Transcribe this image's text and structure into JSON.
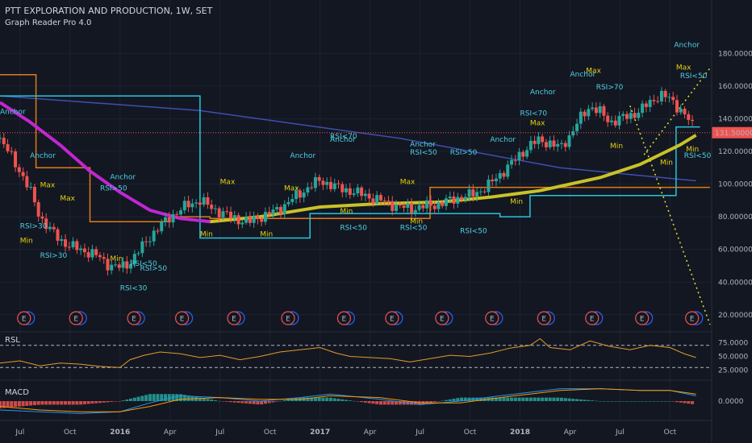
{
  "header": {
    "title": "PTT EXPLORATION AND PRODUCTION, 1W, SET",
    "indicator": "Graph Reader Pro 4.0"
  },
  "colors": {
    "background": "#131722",
    "up": "#26a69a",
    "down": "#ef5350",
    "ma_magenta": "#c026d3",
    "ma_yellow": "#c9c227",
    "blue_line": "#3f4fb0",
    "orange_step": "#e07b1a",
    "cyan_step": "#26c6da",
    "signal_yellow": "#e4d40c",
    "signal_cyan": "#4dd0e1",
    "rsl_line": "#e59a2b",
    "macd_line": "#2196f3",
    "macd_signal": "#ff9800"
  },
  "chart_data": {
    "type": "candlestick",
    "price_axis": [
      "180.00000",
      "160.00000",
      "140.00000",
      "120.00000",
      "100.00000",
      "80.00000",
      "60.00000",
      "40.00000",
      "20.00000"
    ],
    "price_ticks": [
      180,
      160,
      140,
      120,
      100,
      80,
      60,
      40,
      20
    ],
    "ylim": [
      13,
      193
    ],
    "last_price": "131.50000",
    "last_price_value": 131.5,
    "x_labels": [
      "Jul",
      "Oct",
      "2016",
      "Apr",
      "Jul",
      "Oct",
      "2017",
      "Apr",
      "Jul",
      "Oct",
      "2018",
      "Apr",
      "Jul",
      "Oct"
    ],
    "x_range": [
      2015.4,
      2018.95
    ],
    "x_label_positions": [
      2015.5,
      2015.75,
      2016.0,
      2016.25,
      2016.5,
      2016.75,
      2017.0,
      2017.25,
      2017.5,
      2017.75,
      2018.0,
      2018.25,
      2018.5,
      2018.75
    ],
    "price_series": [
      [
        2015.4,
        128
      ],
      [
        2015.45,
        118
      ],
      [
        2015.5,
        108
      ],
      [
        2015.55,
        96
      ],
      [
        2015.6,
        80
      ],
      [
        2015.65,
        72
      ],
      [
        2015.7,
        66
      ],
      [
        2015.75,
        62
      ],
      [
        2015.8,
        60
      ],
      [
        2015.85,
        58
      ],
      [
        2015.9,
        55
      ],
      [
        2015.95,
        50
      ],
      [
        2016.0,
        49
      ],
      [
        2016.05,
        52
      ],
      [
        2016.1,
        60
      ],
      [
        2016.15,
        68
      ],
      [
        2016.2,
        74
      ],
      [
        2016.25,
        80
      ],
      [
        2016.3,
        84
      ],
      [
        2016.35,
        88
      ],
      [
        2016.4,
        90
      ],
      [
        2016.45,
        86
      ],
      [
        2016.5,
        83
      ],
      [
        2016.55,
        80
      ],
      [
        2016.6,
        78
      ],
      [
        2016.65,
        77
      ],
      [
        2016.7,
        80
      ],
      [
        2016.75,
        82
      ],
      [
        2016.8,
        85
      ],
      [
        2016.85,
        90
      ],
      [
        2016.9,
        94
      ],
      [
        2016.95,
        99
      ],
      [
        2017.0,
        102
      ],
      [
        2017.05,
        100
      ],
      [
        2017.1,
        97
      ],
      [
        2017.15,
        96
      ],
      [
        2017.2,
        94
      ],
      [
        2017.25,
        92
      ],
      [
        2017.3,
        90
      ],
      [
        2017.35,
        88
      ],
      [
        2017.4,
        86
      ],
      [
        2017.45,
        85
      ],
      [
        2017.5,
        86
      ],
      [
        2017.55,
        87
      ],
      [
        2017.6,
        88
      ],
      [
        2017.65,
        90
      ],
      [
        2017.7,
        92
      ],
      [
        2017.75,
        93
      ],
      [
        2017.8,
        96
      ],
      [
        2017.85,
        100
      ],
      [
        2017.9,
        106
      ],
      [
        2017.95,
        112
      ],
      [
        2018.0,
        118
      ],
      [
        2018.05,
        124
      ],
      [
        2018.1,
        127
      ],
      [
        2018.15,
        125
      ],
      [
        2018.2,
        122
      ],
      [
        2018.25,
        130
      ],
      [
        2018.3,
        140
      ],
      [
        2018.35,
        148
      ],
      [
        2018.4,
        144
      ],
      [
        2018.45,
        138
      ],
      [
        2018.5,
        140
      ],
      [
        2018.55,
        142
      ],
      [
        2018.6,
        145
      ],
      [
        2018.65,
        150
      ],
      [
        2018.7,
        155
      ],
      [
        2018.75,
        152
      ],
      [
        2018.8,
        146
      ],
      [
        2018.85,
        138
      ],
      [
        2018.88,
        131.5
      ]
    ],
    "ma_magenta": [
      [
        2015.4,
        150
      ],
      [
        2015.55,
        138
      ],
      [
        2015.7,
        124
      ],
      [
        2015.85,
        108
      ],
      [
        2016.0,
        95
      ],
      [
        2016.15,
        84
      ],
      [
        2016.3,
        79
      ],
      [
        2016.45,
        77
      ]
    ],
    "ma_yellow": [
      [
        2016.45,
        77
      ],
      [
        2016.7,
        80
      ],
      [
        2017.0,
        86
      ],
      [
        2017.3,
        88
      ],
      [
        2017.6,
        89
      ],
      [
        2017.85,
        92
      ],
      [
        2018.1,
        96
      ],
      [
        2018.4,
        104
      ],
      [
        2018.6,
        112
      ],
      [
        2018.8,
        124
      ],
      [
        2018.88,
        130
      ]
    ],
    "blue_line": [
      [
        2015.4,
        154
      ],
      [
        2016.4,
        145
      ],
      [
        2017.4,
        128
      ],
      [
        2018.2,
        110
      ],
      [
        2018.88,
        102
      ]
    ],
    "orange_step": [
      [
        2015.4,
        167
      ],
      [
        2015.58,
        167
      ],
      [
        2015.58,
        110
      ],
      [
        2015.85,
        110
      ],
      [
        2015.85,
        77
      ],
      [
        2016.25,
        77
      ],
      [
        2016.25,
        80
      ],
      [
        2016.45,
        80
      ],
      [
        2016.45,
        79
      ],
      [
        2017.55,
        79
      ],
      [
        2017.55,
        98
      ],
      [
        2018.95,
        98
      ]
    ],
    "cyan_step": [
      [
        2015.4,
        154
      ],
      [
        2016.4,
        154
      ],
      [
        2016.4,
        67
      ],
      [
        2016.95,
        67
      ],
      [
        2016.95,
        82
      ],
      [
        2017.9,
        82
      ],
      [
        2017.9,
        80
      ],
      [
        2018.05,
        80
      ],
      [
        2018.05,
        93
      ],
      [
        2018.78,
        93
      ],
      [
        2018.78,
        135
      ],
      [
        2018.9,
        135
      ]
    ],
    "dotted_up": [
      [
        2018.62,
        118
      ],
      [
        2018.95,
        171
      ]
    ],
    "dotted_down": [
      [
        2018.55,
        148
      ],
      [
        2018.95,
        14
      ]
    ],
    "signals": [
      {
        "text": "Anchor",
        "x": 2015.4,
        "y": 143,
        "c": "cyan"
      },
      {
        "text": "Anchor",
        "x": 2015.55,
        "y": 116,
        "c": "cyan"
      },
      {
        "text": "Anchor",
        "x": 2015.95,
        "y": 103,
        "c": "cyan"
      },
      {
        "text": "Anchor",
        "x": 2016.85,
        "y": 116,
        "c": "cyan"
      },
      {
        "text": "Anchor",
        "x": 2017.05,
        "y": 126,
        "c": "cyan"
      },
      {
        "text": "Anchor",
        "x": 2017.45,
        "y": 123,
        "c": "cyan"
      },
      {
        "text": "Anchor",
        "x": 2017.85,
        "y": 126,
        "c": "cyan"
      },
      {
        "text": "Anchor",
        "x": 2018.25,
        "y": 166,
        "c": "cyan"
      },
      {
        "text": "Anchor",
        "x": 2018.05,
        "y": 155,
        "c": "cyan"
      },
      {
        "text": "Anchor",
        "x": 2018.77,
        "y": 184,
        "c": "cyan"
      },
      {
        "text": "Max",
        "x": 2015.7,
        "y": 90,
        "c": "yellow"
      },
      {
        "text": "Max",
        "x": 2015.6,
        "y": 98,
        "c": "yellow"
      },
      {
        "text": "Max",
        "x": 2016.5,
        "y": 100,
        "c": "yellow"
      },
      {
        "text": "Max",
        "x": 2016.82,
        "y": 96,
        "c": "yellow"
      },
      {
        "text": "Max",
        "x": 2017.4,
        "y": 100,
        "c": "yellow"
      },
      {
        "text": "Max",
        "x": 2018.05,
        "y": 136,
        "c": "yellow"
      },
      {
        "text": "Max",
        "x": 2018.33,
        "y": 168,
        "c": "yellow"
      },
      {
        "text": "Max",
        "x": 2018.78,
        "y": 170,
        "c": "yellow"
      },
      {
        "text": "Min",
        "x": 2015.5,
        "y": 64,
        "c": "yellow"
      },
      {
        "text": "Min",
        "x": 2015.95,
        "y": 53,
        "c": "yellow"
      },
      {
        "text": "Min",
        "x": 2016.4,
        "y": 68,
        "c": "yellow"
      },
      {
        "text": "Min",
        "x": 2016.7,
        "y": 68,
        "c": "yellow"
      },
      {
        "text": "Min",
        "x": 2017.1,
        "y": 82,
        "c": "yellow"
      },
      {
        "text": "Min",
        "x": 2017.45,
        "y": 76,
        "c": "yellow"
      },
      {
        "text": "Min",
        "x": 2017.95,
        "y": 88,
        "c": "yellow"
      },
      {
        "text": "Min",
        "x": 2018.45,
        "y": 122,
        "c": "yellow"
      },
      {
        "text": "Min",
        "x": 2018.7,
        "y": 112,
        "c": "yellow"
      },
      {
        "text": "Min",
        "x": 2018.83,
        "y": 120,
        "c": "yellow"
      },
      {
        "text": "RSI>30",
        "x": 2015.6,
        "y": 55,
        "c": "cyan"
      },
      {
        "text": "RSI>30",
        "x": 2015.5,
        "y": 73,
        "c": "cyan"
      },
      {
        "text": "RSI>50",
        "x": 2015.9,
        "y": 96,
        "c": "cyan"
      },
      {
        "text": "RSI>50",
        "x": 2016.1,
        "y": 47,
        "c": "cyan"
      },
      {
        "text": "RSI<30",
        "x": 2016.0,
        "y": 35,
        "c": "cyan"
      },
      {
        "text": "RSI<50",
        "x": 2016.05,
        "y": 50,
        "c": "cyan"
      },
      {
        "text": "RSI<50",
        "x": 2017.1,
        "y": 72,
        "c": "cyan"
      },
      {
        "text": "RSI<50",
        "x": 2017.4,
        "y": 72,
        "c": "cyan"
      },
      {
        "text": "RSI<50",
        "x": 2017.7,
        "y": 70,
        "c": "cyan"
      },
      {
        "text": "RSI<50",
        "x": 2017.45,
        "y": 118,
        "c": "cyan"
      },
      {
        "text": "RSI>50",
        "x": 2017.65,
        "y": 118,
        "c": "cyan"
      },
      {
        "text": "RSI<70",
        "x": 2017.05,
        "y": 128,
        "c": "cyan"
      },
      {
        "text": "RSI<70",
        "x": 2018.0,
        "y": 142,
        "c": "cyan"
      },
      {
        "text": "RSI>70",
        "x": 2018.38,
        "y": 158,
        "c": "cyan"
      },
      {
        "text": "RSI<50",
        "x": 2018.82,
        "y": 116,
        "c": "cyan"
      },
      {
        "text": "RSI<50",
        "x": 2018.8,
        "y": 165,
        "c": "cyan"
      }
    ],
    "earnings_markers": [
      {
        "label": "E",
        "x": 2015.52
      },
      {
        "label": "E",
        "x": 2015.78
      },
      {
        "label": "E",
        "x": 2016.07
      },
      {
        "label": "E",
        "x": 2016.31
      },
      {
        "label": "E",
        "x": 2016.57
      },
      {
        "label": "E",
        "x": 2016.84
      },
      {
        "label": "E",
        "x": 2017.12
      },
      {
        "label": "E",
        "x": 2017.36
      },
      {
        "label": "E",
        "x": 2017.61
      },
      {
        "label": "E",
        "x": 2017.86
      },
      {
        "label": "E",
        "x": 2018.12
      },
      {
        "label": "E",
        "x": 2018.36
      },
      {
        "label": "E",
        "x": 2018.61
      },
      {
        "label": "E",
        "x": 2018.86
      }
    ],
    "rsl": {
      "label": "RSL",
      "axis": [
        "75.0000",
        "50.0000",
        "25.0000"
      ],
      "ticks": [
        75,
        50,
        25
      ],
      "ylim": [
        10,
        90
      ],
      "levels": [
        70,
        30
      ],
      "values": [
        [
          2015.4,
          38
        ],
        [
          2015.5,
          42
        ],
        [
          2015.6,
          33
        ],
        [
          2015.7,
          38
        ],
        [
          2015.8,
          36
        ],
        [
          2015.9,
          32
        ],
        [
          2016.0,
          30
        ],
        [
          2016.05,
          44
        ],
        [
          2016.12,
          52
        ],
        [
          2016.2,
          58
        ],
        [
          2016.3,
          55
        ],
        [
          2016.4,
          48
        ],
        [
          2016.5,
          52
        ],
        [
          2016.6,
          44
        ],
        [
          2016.7,
          50
        ],
        [
          2016.8,
          58
        ],
        [
          2016.9,
          62
        ],
        [
          2017.0,
          66
        ],
        [
          2017.08,
          56
        ],
        [
          2017.15,
          50
        ],
        [
          2017.25,
          48
        ],
        [
          2017.35,
          46
        ],
        [
          2017.45,
          40
        ],
        [
          2017.55,
          46
        ],
        [
          2017.65,
          52
        ],
        [
          2017.75,
          50
        ],
        [
          2017.85,
          56
        ],
        [
          2017.95,
          65
        ],
        [
          2018.05,
          70
        ],
        [
          2018.1,
          82
        ],
        [
          2018.15,
          66
        ],
        [
          2018.25,
          62
        ],
        [
          2018.35,
          78
        ],
        [
          2018.45,
          68
        ],
        [
          2018.55,
          62
        ],
        [
          2018.65,
          70
        ],
        [
          2018.75,
          66
        ],
        [
          2018.82,
          55
        ],
        [
          2018.88,
          48
        ]
      ]
    },
    "macd": {
      "label": "MACD",
      "axis": [
        "0.0000"
      ],
      "zero": 0,
      "ylim": [
        -10,
        10
      ],
      "macd_line": [
        [
          2015.4,
          -5
        ],
        [
          2015.6,
          -6
        ],
        [
          2015.8,
          -7
        ],
        [
          2016.0,
          -6
        ],
        [
          2016.15,
          -1
        ],
        [
          2016.3,
          3
        ],
        [
          2016.5,
          2
        ],
        [
          2016.7,
          0
        ],
        [
          2016.9,
          2
        ],
        [
          2017.05,
          4
        ],
        [
          2017.3,
          1
        ],
        [
          2017.5,
          -2
        ],
        [
          2017.7,
          0
        ],
        [
          2017.9,
          3
        ],
        [
          2018.05,
          5
        ],
        [
          2018.2,
          7
        ],
        [
          2018.4,
          7
        ],
        [
          2018.6,
          6
        ],
        [
          2018.75,
          6
        ],
        [
          2018.88,
          3
        ]
      ],
      "signal_line": [
        [
          2015.4,
          -3
        ],
        [
          2015.6,
          -5
        ],
        [
          2015.8,
          -6
        ],
        [
          2016.0,
          -6
        ],
        [
          2016.15,
          -3
        ],
        [
          2016.3,
          1
        ],
        [
          2016.5,
          2
        ],
        [
          2016.7,
          1
        ],
        [
          2016.9,
          1
        ],
        [
          2017.05,
          3
        ],
        [
          2017.3,
          2
        ],
        [
          2017.5,
          -1
        ],
        [
          2017.7,
          -1
        ],
        [
          2017.9,
          2
        ],
        [
          2018.05,
          4
        ],
        [
          2018.2,
          6
        ],
        [
          2018.4,
          7
        ],
        [
          2018.6,
          6
        ],
        [
          2018.75,
          6
        ],
        [
          2018.88,
          4
        ]
      ]
    }
  }
}
